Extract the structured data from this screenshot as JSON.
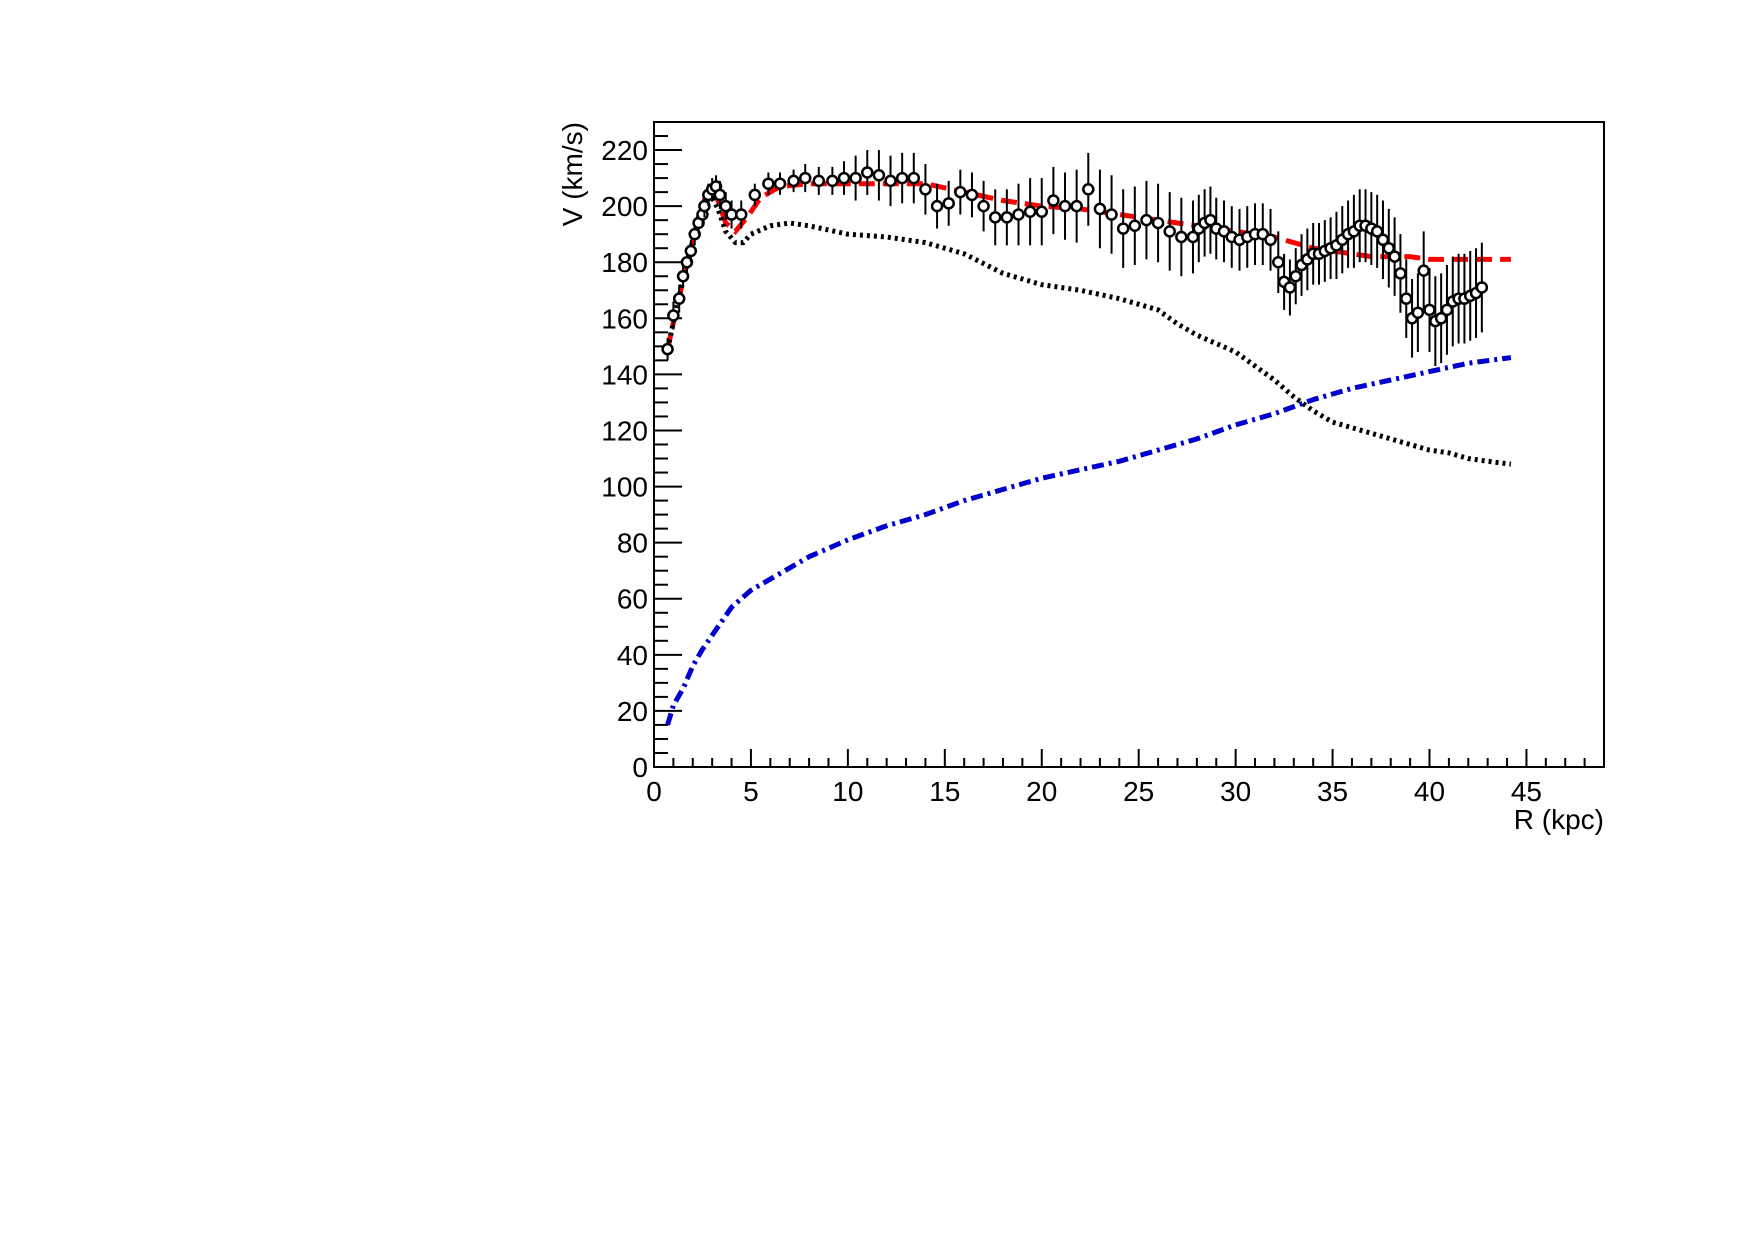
{
  "chart_data": {
    "type": "scatter",
    "title": "",
    "xlabel": "R (kpc)",
    "ylabel": "V (km/s)",
    "xlim": [
      0,
      49
    ],
    "ylim": [
      0,
      230
    ],
    "x_ticks": [
      "0",
      "5",
      "10",
      "15",
      "20",
      "25",
      "30",
      "35",
      "40",
      "45"
    ],
    "y_ticks": [
      "0",
      "20",
      "40",
      "60",
      "80",
      "100",
      "120",
      "140",
      "160",
      "180",
      "200",
      "220"
    ],
    "grid": false,
    "legend": "none",
    "series": [
      {
        "kind": "points_with_error_bars",
        "marker": "open-circle",
        "color": "#000000",
        "points": [
          [
            0.7,
            149,
            4
          ],
          [
            1.0,
            161,
            5
          ],
          [
            1.3,
            167,
            5
          ],
          [
            1.5,
            175,
            4
          ],
          [
            1.7,
            180,
            4
          ],
          [
            1.9,
            184,
            4
          ],
          [
            2.1,
            190,
            4
          ],
          [
            2.3,
            194,
            4
          ],
          [
            2.5,
            197,
            4
          ],
          [
            2.6,
            200,
            4
          ],
          [
            2.8,
            204,
            4
          ],
          [
            3.0,
            206,
            4
          ],
          [
            3.2,
            207,
            4
          ],
          [
            3.4,
            204,
            5
          ],
          [
            3.7,
            200,
            5
          ],
          [
            4.0,
            197,
            5
          ],
          [
            4.5,
            197,
            5
          ],
          [
            5.2,
            204,
            4
          ],
          [
            5.9,
            208,
            4
          ],
          [
            6.5,
            208,
            4
          ],
          [
            7.2,
            209,
            4
          ],
          [
            7.8,
            210,
            5
          ],
          [
            8.5,
            209,
            5
          ],
          [
            9.2,
            209,
            5
          ],
          [
            9.8,
            210,
            6
          ],
          [
            10.4,
            210,
            8
          ],
          [
            11.0,
            212,
            8
          ],
          [
            11.6,
            211,
            9
          ],
          [
            12.2,
            209,
            9
          ],
          [
            12.8,
            210,
            9
          ],
          [
            13.4,
            210,
            9
          ],
          [
            14.0,
            206,
            9
          ],
          [
            14.6,
            200,
            8
          ],
          [
            15.2,
            201,
            8
          ],
          [
            15.8,
            205,
            8
          ],
          [
            16.4,
            204,
            8
          ],
          [
            17.0,
            200,
            9
          ],
          [
            17.6,
            196,
            10
          ],
          [
            18.2,
            196,
            10
          ],
          [
            18.8,
            197,
            11
          ],
          [
            19.4,
            198,
            12
          ],
          [
            20.0,
            198,
            12
          ],
          [
            20.6,
            202,
            12
          ],
          [
            21.2,
            200,
            12
          ],
          [
            21.8,
            200,
            13
          ],
          [
            22.4,
            206,
            13
          ],
          [
            23.0,
            199,
            14
          ],
          [
            23.6,
            197,
            14
          ],
          [
            24.2,
            192,
            14
          ],
          [
            24.8,
            193,
            14
          ],
          [
            25.4,
            195,
            14
          ],
          [
            26.0,
            194,
            14
          ],
          [
            26.6,
            191,
            14
          ],
          [
            27.2,
            189,
            14
          ],
          [
            27.8,
            189,
            13
          ],
          [
            28.1,
            192,
            12
          ],
          [
            28.4,
            194,
            12
          ],
          [
            28.7,
            195,
            12
          ],
          [
            29.0,
            192,
            11
          ],
          [
            29.4,
            191,
            11
          ],
          [
            29.8,
            189,
            11
          ],
          [
            30.2,
            188,
            11
          ],
          [
            30.6,
            189,
            11
          ],
          [
            31.0,
            190,
            11
          ],
          [
            31.4,
            190,
            11
          ],
          [
            31.8,
            188,
            11
          ],
          [
            32.2,
            180,
            11
          ],
          [
            32.5,
            173,
            10
          ],
          [
            32.8,
            171,
            10
          ],
          [
            33.1,
            175,
            10
          ],
          [
            33.4,
            179,
            11
          ],
          [
            33.7,
            181,
            11
          ],
          [
            34.0,
            183,
            11
          ],
          [
            34.3,
            183,
            11
          ],
          [
            34.6,
            184,
            11
          ],
          [
            34.9,
            185,
            11
          ],
          [
            35.2,
            186,
            12
          ],
          [
            35.5,
            188,
            12
          ],
          [
            35.8,
            190,
            12
          ],
          [
            36.1,
            191,
            13
          ],
          [
            36.4,
            193,
            13
          ],
          [
            36.7,
            193,
            13
          ],
          [
            37.0,
            192,
            13
          ],
          [
            37.3,
            191,
            13
          ],
          [
            37.6,
            188,
            14
          ],
          [
            37.9,
            185,
            14
          ],
          [
            38.2,
            182,
            14
          ],
          [
            38.5,
            176,
            14
          ],
          [
            38.8,
            167,
            14
          ],
          [
            39.1,
            160,
            14
          ],
          [
            39.4,
            162,
            14
          ],
          [
            39.7,
            177,
            14
          ],
          [
            40.0,
            163,
            15
          ],
          [
            40.3,
            159,
            16
          ],
          [
            40.6,
            160,
            16
          ],
          [
            40.9,
            163,
            16
          ],
          [
            41.2,
            166,
            16
          ],
          [
            41.5,
            167,
            16
          ],
          [
            41.8,
            167,
            16
          ],
          [
            42.1,
            168,
            16
          ],
          [
            42.4,
            169,
            16
          ],
          [
            42.7,
            171,
            16
          ]
        ]
      },
      {
        "kind": "line",
        "style": "dash",
        "color": "#ff0000",
        "x": [
          0.7,
          1.2,
          1.8,
          2.3,
          2.7,
          3.0,
          3.3,
          3.7,
          4.2,
          4.8,
          5.5,
          6.5,
          8,
          10,
          12,
          14,
          16,
          18,
          20,
          22,
          24,
          26,
          28,
          30,
          32,
          33,
          34,
          35,
          36,
          37,
          38,
          39,
          40,
          41,
          42,
          43,
          44.2
        ],
        "y": [
          149,
          165,
          182,
          196,
          204,
          206,
          202,
          194,
          191,
          196,
          203,
          207,
          208,
          208,
          208,
          208,
          205,
          202,
          200,
          199,
          197,
          195,
          193,
          191,
          189,
          187,
          185,
          184,
          183,
          182,
          182,
          182,
          181,
          181,
          181,
          181,
          181
        ]
      },
      {
        "kind": "line",
        "style": "dot",
        "color": "#000000",
        "x": [
          0.7,
          1.2,
          1.8,
          2.3,
          2.7,
          3.0,
          3.3,
          3.7,
          4.2,
          4.6,
          5.0,
          6.0,
          7.0,
          8.0,
          10,
          12,
          14,
          15,
          16,
          18,
          19,
          20,
          22,
          24,
          26,
          27,
          28,
          30,
          31,
          32,
          33,
          34,
          35,
          36,
          37,
          38,
          39,
          40,
          41,
          42,
          43,
          44.2
        ],
        "y": [
          149,
          165,
          182,
          196,
          202,
          203,
          199,
          191,
          187,
          187,
          190,
          193,
          194,
          193,
          190,
          189,
          187,
          185,
          183,
          176,
          174,
          172,
          170,
          167,
          163,
          158,
          154,
          148,
          143,
          138,
          132,
          127,
          123,
          121,
          119,
          117,
          115,
          113,
          112,
          110,
          109,
          108
        ]
      },
      {
        "kind": "line",
        "style": "dash-dot",
        "color": "#0000cc",
        "x": [
          0.7,
          1.0,
          1.5,
          2.0,
          2.5,
          3.0,
          3.5,
          4.0,
          5.0,
          6.0,
          7.0,
          8.0,
          9.0,
          10,
          12,
          14,
          16,
          18,
          20,
          22,
          24,
          26,
          28,
          30,
          32,
          34,
          35,
          36,
          38,
          40,
          42,
          44.2
        ],
        "y": [
          15,
          22,
          28,
          36,
          42,
          47,
          52,
          57,
          63,
          67,
          71,
          75,
          78,
          81,
          86,
          90,
          95,
          99,
          103,
          106,
          109,
          113,
          117,
          122,
          126,
          131,
          133,
          135,
          138,
          141,
          144,
          146
        ]
      }
    ]
  }
}
